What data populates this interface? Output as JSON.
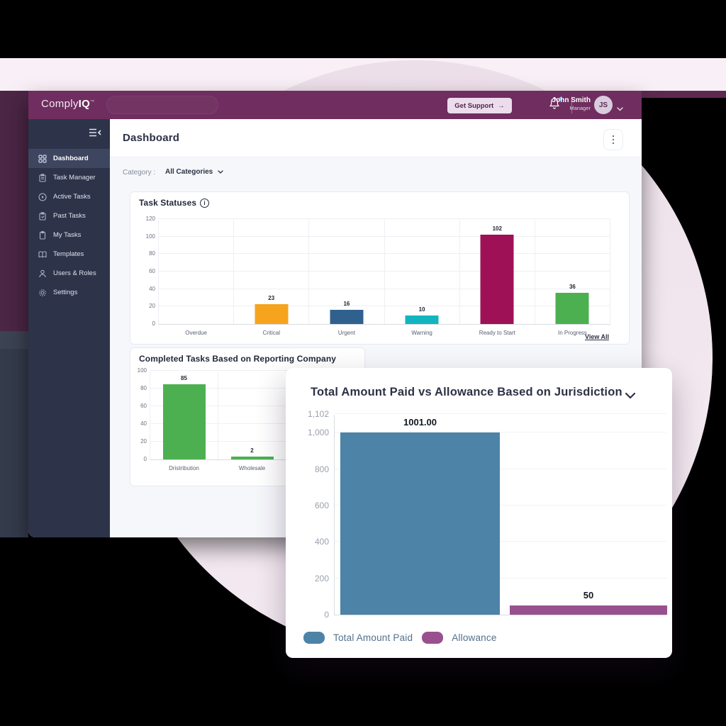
{
  "header": {
    "logo_light": "Comply",
    "logo_bold": "IQ",
    "logo_tm": "™",
    "get_support_label": "Get Support",
    "get_support_arrow": "→",
    "icons": [
      "bell-icon",
      "chevron-down-icon"
    ],
    "user": {
      "name": "John Smith",
      "role": "Manager",
      "initials": "JS"
    }
  },
  "sidebar": {
    "collapse_icon": "sidebar-collapse-icon",
    "items": [
      {
        "label": "Dashboard",
        "icon": "grid-icon",
        "active": true
      },
      {
        "label": "Task Manager",
        "icon": "clipboard-icon",
        "active": false
      },
      {
        "label": "Active Tasks",
        "icon": "play-circle-icon",
        "active": false
      },
      {
        "label": "Past Tasks",
        "icon": "clipboard-arrow-icon",
        "active": false
      },
      {
        "label": "My Tasks",
        "icon": "clipboard-check-icon",
        "active": false
      },
      {
        "label": "Templates",
        "icon": "book-icon",
        "active": false
      },
      {
        "label": "Users & Roles",
        "icon": "person-icon",
        "active": false
      },
      {
        "label": "Settings",
        "icon": "gear-icon",
        "active": false
      }
    ]
  },
  "page": {
    "title": "Dashboard",
    "filter": {
      "label": "Category :",
      "value": "All Categories"
    }
  },
  "chart_data": [
    {
      "type": "bar",
      "title": "Task Statuses",
      "categories": [
        "Overdue",
        "Critical",
        "Urgent",
        "Warning",
        "Ready to Start",
        "In Progress"
      ],
      "values": [
        0,
        23,
        16,
        10,
        102,
        36
      ],
      "colors": [
        "#f6a41d",
        "#f6a41d",
        "#30618e",
        "#12b5bd",
        "#9e1157",
        "#4cb051"
      ],
      "ylim": [
        0,
        120
      ],
      "yticks": [
        0,
        20,
        40,
        60,
        80,
        100,
        120
      ],
      "grid": true,
      "link": "View All"
    },
    {
      "type": "bar",
      "title": "Completed Tasks Based on Reporting Company",
      "categories": [
        "Dristribution",
        "Wholesale"
      ],
      "values": [
        85,
        2
      ],
      "color": "#4cb051",
      "ylim": [
        0,
        100
      ],
      "yticks": [
        0,
        20,
        40,
        60,
        80,
        100
      ],
      "grid": true
    },
    {
      "type": "bar",
      "title": "Total Amount Paid vs Allowance Based on Jurisdiction",
      "series": [
        {
          "name": "Total Amount Paid",
          "value": 1001,
          "label": "1001.00",
          "color": "#4d83a7"
        },
        {
          "name": "Allowance",
          "value": 50,
          "label": "50",
          "color": "#99508f"
        }
      ],
      "ylim": [
        0,
        1102
      ],
      "yticks": [
        0,
        200,
        400,
        600,
        800,
        1000,
        1102
      ],
      "ytick_labels": [
        "0",
        "200",
        "400",
        "600",
        "800",
        "1,000",
        "1,102"
      ],
      "grid": true,
      "legend_position": "bottom"
    }
  ]
}
